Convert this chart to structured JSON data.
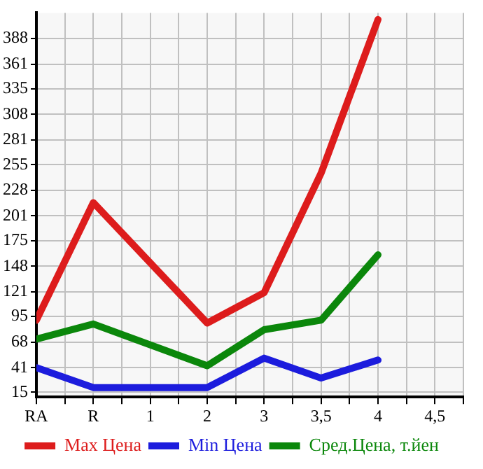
{
  "chart_data": {
    "type": "line",
    "categories": [
      "RA",
      "R",
      "1",
      "2",
      "3",
      "3,5",
      "4",
      "4,5"
    ],
    "series": [
      {
        "name": "Max Цена",
        "color": "#dd1c1c",
        "values": [
          91,
          215,
          null,
          88,
          120,
          246,
          408,
          null
        ]
      },
      {
        "name": "Min Цена",
        "color": "#1c1cdd",
        "values": [
          41,
          20,
          null,
          20,
          51,
          30,
          49,
          null
        ]
      },
      {
        "name": "Сред.Цена, т.йен",
        "color": "#0b870b",
        "values": [
          71,
          87,
          null,
          43,
          81,
          91,
          160,
          null
        ]
      }
    ],
    "ylim": [
      10,
      415
    ],
    "yticks": [
      15,
      41,
      68,
      95,
      121,
      148,
      175,
      201,
      228,
      255,
      281,
      308,
      335,
      361,
      388
    ],
    "grid": true,
    "legend": "bottom",
    "marker": "none",
    "line_style": "solid"
  }
}
